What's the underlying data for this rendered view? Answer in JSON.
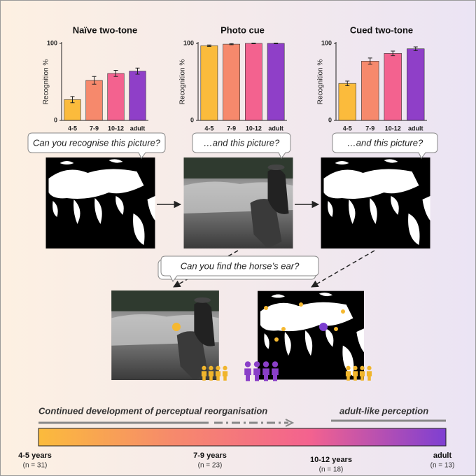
{
  "chart_data": [
    {
      "type": "bar",
      "title": "Naïve two-tone",
      "y_label": "Recognition %",
      "categories": [
        "4-5",
        "7-9",
        "10-12",
        "adult"
      ],
      "values": [
        27,
        52,
        61,
        64
      ],
      "errors": [
        4,
        5,
        4,
        4
      ],
      "colors": [
        "#fbbb3c",
        "#f6896c",
        "#f3628f",
        "#8f3fc8"
      ],
      "ylim": [
        0,
        100
      ],
      "yticks": [
        0,
        100
      ]
    },
    {
      "type": "bar",
      "title": "Photo cue",
      "y_label": "Recognition %",
      "categories": [
        "4-5",
        "7-9",
        "10-12",
        "adult"
      ],
      "values": [
        97,
        99,
        100,
        100
      ],
      "errors": [
        1,
        0.7,
        0.4,
        0.4
      ],
      "colors": [
        "#fbbb3c",
        "#f6896c",
        "#f3628f",
        "#8f3fc8"
      ],
      "ylim": [
        0,
        100
      ],
      "yticks": [
        0,
        100
      ]
    },
    {
      "type": "bar",
      "title": "Cued two-tone",
      "y_label": "Recognition %",
      "categories": [
        "4-5",
        "7-9",
        "10-12",
        "adult"
      ],
      "values": [
        48,
        77,
        87,
        93
      ],
      "errors": [
        3,
        4,
        3,
        2.5
      ],
      "colors": [
        "#fbbb3c",
        "#f6896c",
        "#f3628f",
        "#8f3fc8"
      ],
      "ylim": [
        0,
        100
      ],
      "yticks": [
        0,
        100
      ]
    }
  ],
  "bubbles": [
    "Can you recognise this picture?",
    "…and this picture?",
    "…and this picture?",
    "Can you find the horse’s ear?"
  ],
  "timeline": {
    "left_label": "Continued development of perceptual reorganisation",
    "right_label": "adult-like perception",
    "gradient": [
      "#fbbb3c",
      "#f6896c",
      "#f3628f",
      "#7e3fd2"
    ],
    "groups": [
      {
        "label": "4-5 years",
        "n": "(n = 31)"
      },
      {
        "label": "7-9 years",
        "n": "(n = 23)"
      },
      {
        "label": "10-12 years",
        "n": "(n = 18)"
      },
      {
        "label": "adult",
        "n": "(n = 13)"
      }
    ]
  }
}
